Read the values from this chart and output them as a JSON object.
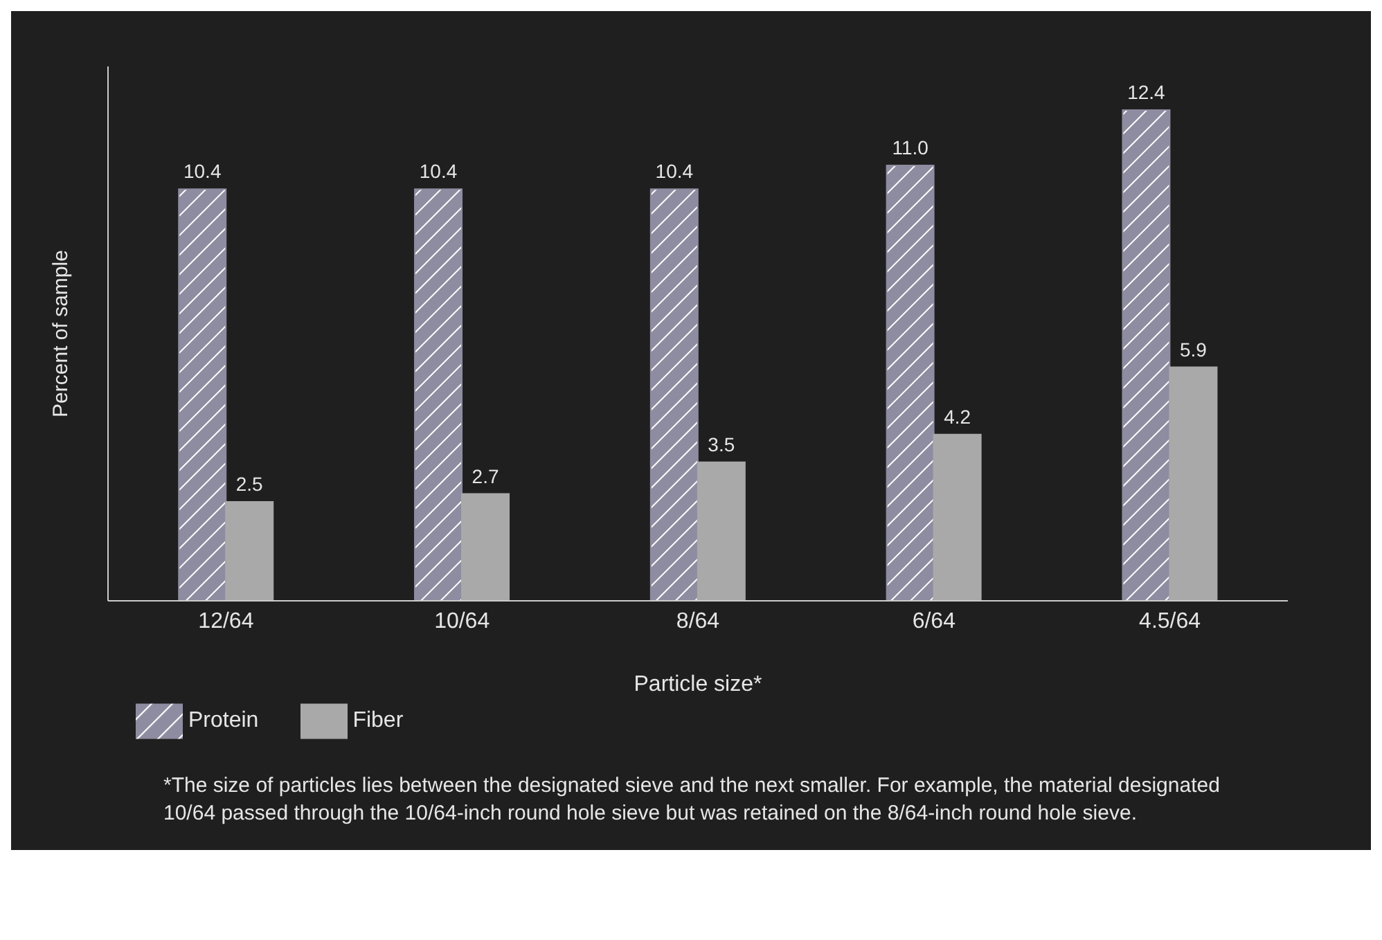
{
  "chart_data": {
    "type": "bar",
    "categories": [
      "12/64",
      "10/64",
      "8/64",
      "6/64",
      "4.5/64"
    ],
    "series": [
      {
        "name": "Protein",
        "color": "#8e8ca0",
        "values": [
          10.4,
          10.4,
          10.4,
          11.0,
          12.4
        ],
        "value_labels": [
          "10.4",
          "10.4",
          "10.4",
          "11.0",
          "12.4"
        ]
      },
      {
        "name": "Fiber",
        "color": "#a9a9a9",
        "values": [
          2.5,
          2.7,
          3.5,
          4.2,
          5.9
        ],
        "value_labels": [
          "2.5",
          "2.7",
          "3.5",
          "4.2",
          "5.9"
        ]
      }
    ],
    "xlabel": "Particle size*",
    "ylabel": "Percent of sample",
    "ylim": [
      0,
      13.5
    ],
    "tick_labels": "x",
    "grid": false,
    "legend": "bottom left",
    "annotations": [
      "*The size of particles lies between the designated sieve and the next smaller. For example, the material designated 10/64 passed through the 10/64-inch round hole sieve but was retained on the 8/64-inch round hole sieve."
    ]
  }
}
